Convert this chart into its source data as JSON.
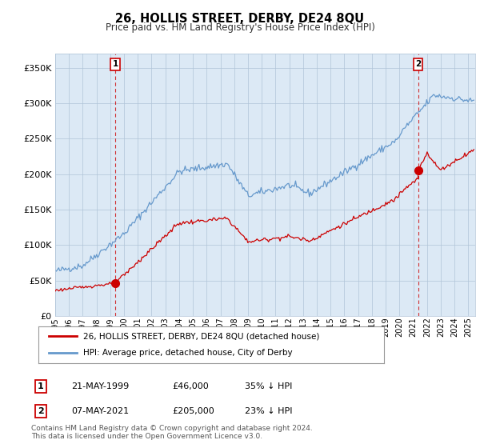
{
  "title": "26, HOLLIS STREET, DERBY, DE24 8QU",
  "subtitle": "Price paid vs. HM Land Registry's House Price Index (HPI)",
  "ylabel_ticks": [
    "£0",
    "£50K",
    "£100K",
    "£150K",
    "£200K",
    "£250K",
    "£300K",
    "£350K"
  ],
  "ytick_values": [
    0,
    50000,
    100000,
    150000,
    200000,
    250000,
    300000,
    350000
  ],
  "ylim": [
    0,
    370000
  ],
  "xlim_start": 1995.0,
  "xlim_end": 2025.5,
  "legend_line1": "26, HOLLIS STREET, DERBY, DE24 8QU (detached house)",
  "legend_line2": "HPI: Average price, detached house, City of Derby",
  "marker1_date": "21-MAY-1999",
  "marker1_price": "£46,000",
  "marker1_pct": "35% ↓ HPI",
  "marker1_x": 1999.38,
  "marker1_y": 46000,
  "marker2_date": "07-MAY-2021",
  "marker2_price": "£205,000",
  "marker2_pct": "23% ↓ HPI",
  "marker2_x": 2021.35,
  "marker2_y": 205000,
  "footnote": "Contains HM Land Registry data © Crown copyright and database right 2024.\nThis data is licensed under the Open Government Licence v3.0.",
  "line_color_red": "#cc0000",
  "line_color_blue": "#6699cc",
  "marker_color_red": "#cc0000",
  "bg_color": "#ffffff",
  "plot_bg": "#dce9f5",
  "grid_color": "#b0c4d8",
  "dashed_line_color": "#cc0000"
}
